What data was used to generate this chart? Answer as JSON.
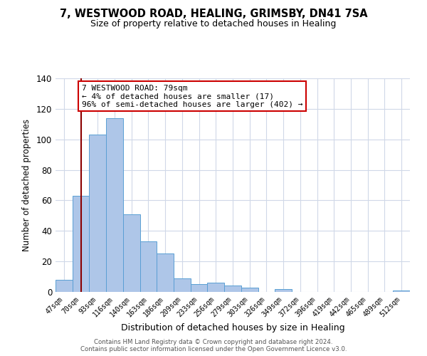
{
  "title": "7, WESTWOOD ROAD, HEALING, GRIMSBY, DN41 7SA",
  "subtitle": "Size of property relative to detached houses in Healing",
  "xlabel": "Distribution of detached houses by size in Healing",
  "ylabel": "Number of detached properties",
  "bar_labels": [
    "47sqm",
    "70sqm",
    "93sqm",
    "116sqm",
    "140sqm",
    "163sqm",
    "186sqm",
    "209sqm",
    "233sqm",
    "256sqm",
    "279sqm",
    "303sqm",
    "326sqm",
    "349sqm",
    "372sqm",
    "396sqm",
    "419sqm",
    "442sqm",
    "465sqm",
    "489sqm",
    "512sqm"
  ],
  "bar_values": [
    8,
    63,
    103,
    114,
    51,
    33,
    25,
    9,
    5,
    6,
    4,
    3,
    0,
    2,
    0,
    0,
    0,
    0,
    0,
    0,
    1
  ],
  "bar_color": "#aec6e8",
  "bar_edge_color": "#5a9fd4",
  "vline_x": 1,
  "vline_color": "#8b0000",
  "annotation_text": "7 WESTWOOD ROAD: 79sqm\n← 4% of detached houses are smaller (17)\n96% of semi-detached houses are larger (402) →",
  "annotation_box_color": "#ffffff",
  "annotation_box_edge": "#cc0000",
  "ylim": [
    0,
    140
  ],
  "yticks": [
    0,
    20,
    40,
    60,
    80,
    100,
    120,
    140
  ],
  "footer1": "Contains HM Land Registry data © Crown copyright and database right 2024.",
  "footer2": "Contains public sector information licensed under the Open Government Licence v3.0.",
  "bg_color": "#ffffff",
  "grid_color": "#d0d8e8"
}
